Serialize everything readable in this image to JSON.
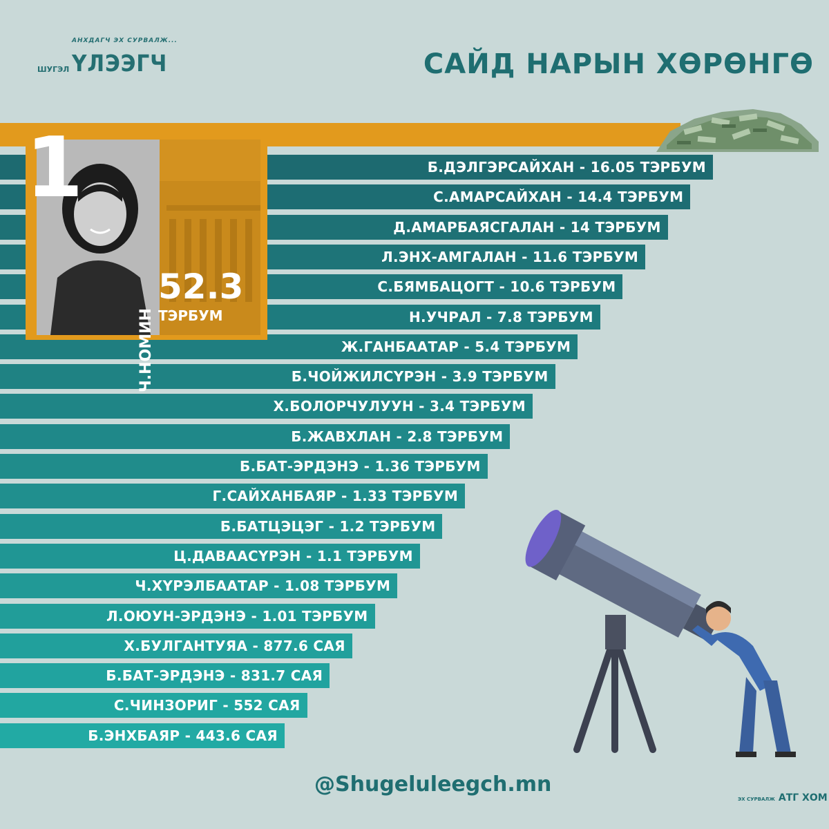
{
  "logo": {
    "tagline": "АНХДАГЧ ЭХ СУРВАЛЖ...",
    "small": "ШУГЭЛ",
    "name": "ҮЛЭЭГЧ"
  },
  "title": "САЙД НАРЫН ХӨРӨНГӨ",
  "featured": {
    "rank": "1",
    "name": "Ч.НОМИН",
    "value": "52.3",
    "unit": "ТЭРБУМ"
  },
  "footer": {
    "handle": "@Shugeluleegch.mn",
    "source_label": "ЭХ СУРВАЛЖ",
    "source": "АТГ ХОМ"
  },
  "colors": {
    "background": "#c9d9d8",
    "accent": "#e29a1d",
    "bar_dark": "#1d6a70",
    "bar_light": "#22aaa4",
    "text_dark": "#1f6e71"
  },
  "chart_data": {
    "type": "bar",
    "orientation": "horizontal",
    "title": "САЙД НАРЫН ХӨРӨНГӨ",
    "featured": {
      "name": "Ч.НОМИН",
      "value": 52.3,
      "unit": "ТЭРБУМ"
    },
    "items": [
      {
        "label": "Б.ДЭЛГЭРСАЙХАН - 16.05 ТЭРБУМ",
        "value": 16.05
      },
      {
        "label": "С.АМАРСАЙХАН - 14.4 ТЭРБУМ",
        "value": 14.4
      },
      {
        "label": "Д.АМАРБАЯСГАЛАН - 14 ТЭРБУМ",
        "value": 14
      },
      {
        "label": "Л.ЭНХ-АМГАЛАН - 11.6 ТЭРБУМ",
        "value": 11.6
      },
      {
        "label": "С.БЯМБАЦОГТ - 10.6 ТЭРБУМ",
        "value": 10.6
      },
      {
        "label": "Н.УЧРАЛ - 7.8 ТЭРБУМ",
        "value": 7.8
      },
      {
        "label": "Ж.ГАНБААТАР - 5.4 ТЭРБУМ",
        "value": 5.4
      },
      {
        "label": "Б.ЧОЙЖИЛСҮРЭН - 3.9 ТЭРБУМ",
        "value": 3.9
      },
      {
        "label": "Х.БОЛОРЧУЛУУН - 3.4 ТЭРБУМ",
        "value": 3.4
      },
      {
        "label": "Б.ЖАВХЛАН - 2.8 ТЭРБУМ",
        "value": 2.8
      },
      {
        "label": "Б.БАТ-ЭРДЭНЭ - 1.36 ТЭРБУМ",
        "value": 1.36
      },
      {
        "label": "Г.САЙХАНБАЯР - 1.33 ТЭРБУМ",
        "value": 1.33
      },
      {
        "label": "Б.БАТЦЭЦЭГ - 1.2 ТЭРБУМ",
        "value": 1.2
      },
      {
        "label": "Ц.ДАВААСҮРЭН - 1.1 ТЭРБУМ",
        "value": 1.1
      },
      {
        "label": "Ч.ХҮРЭЛБААТАР - 1.08 ТЭРБУМ",
        "value": 1.08
      },
      {
        "label": "Л.ОЮУН-ЭРДЭНЭ - 1.01 ТЭРБУМ",
        "value": 1.01
      },
      {
        "label": "Х.БУЛГАНТУЯА - 877.6 САЯ",
        "value": 0.8776
      },
      {
        "label": "Б.БАТ-ЭРДЭНЭ - 831.7 САЯ",
        "value": 0.8317
      },
      {
        "label": "С.ЧИНЗОРИГ  - 552 САЯ",
        "value": 0.552
      },
      {
        "label": "Б.ЭНХБАЯР - 443.6 САЯ",
        "value": 0.4436
      }
    ]
  }
}
